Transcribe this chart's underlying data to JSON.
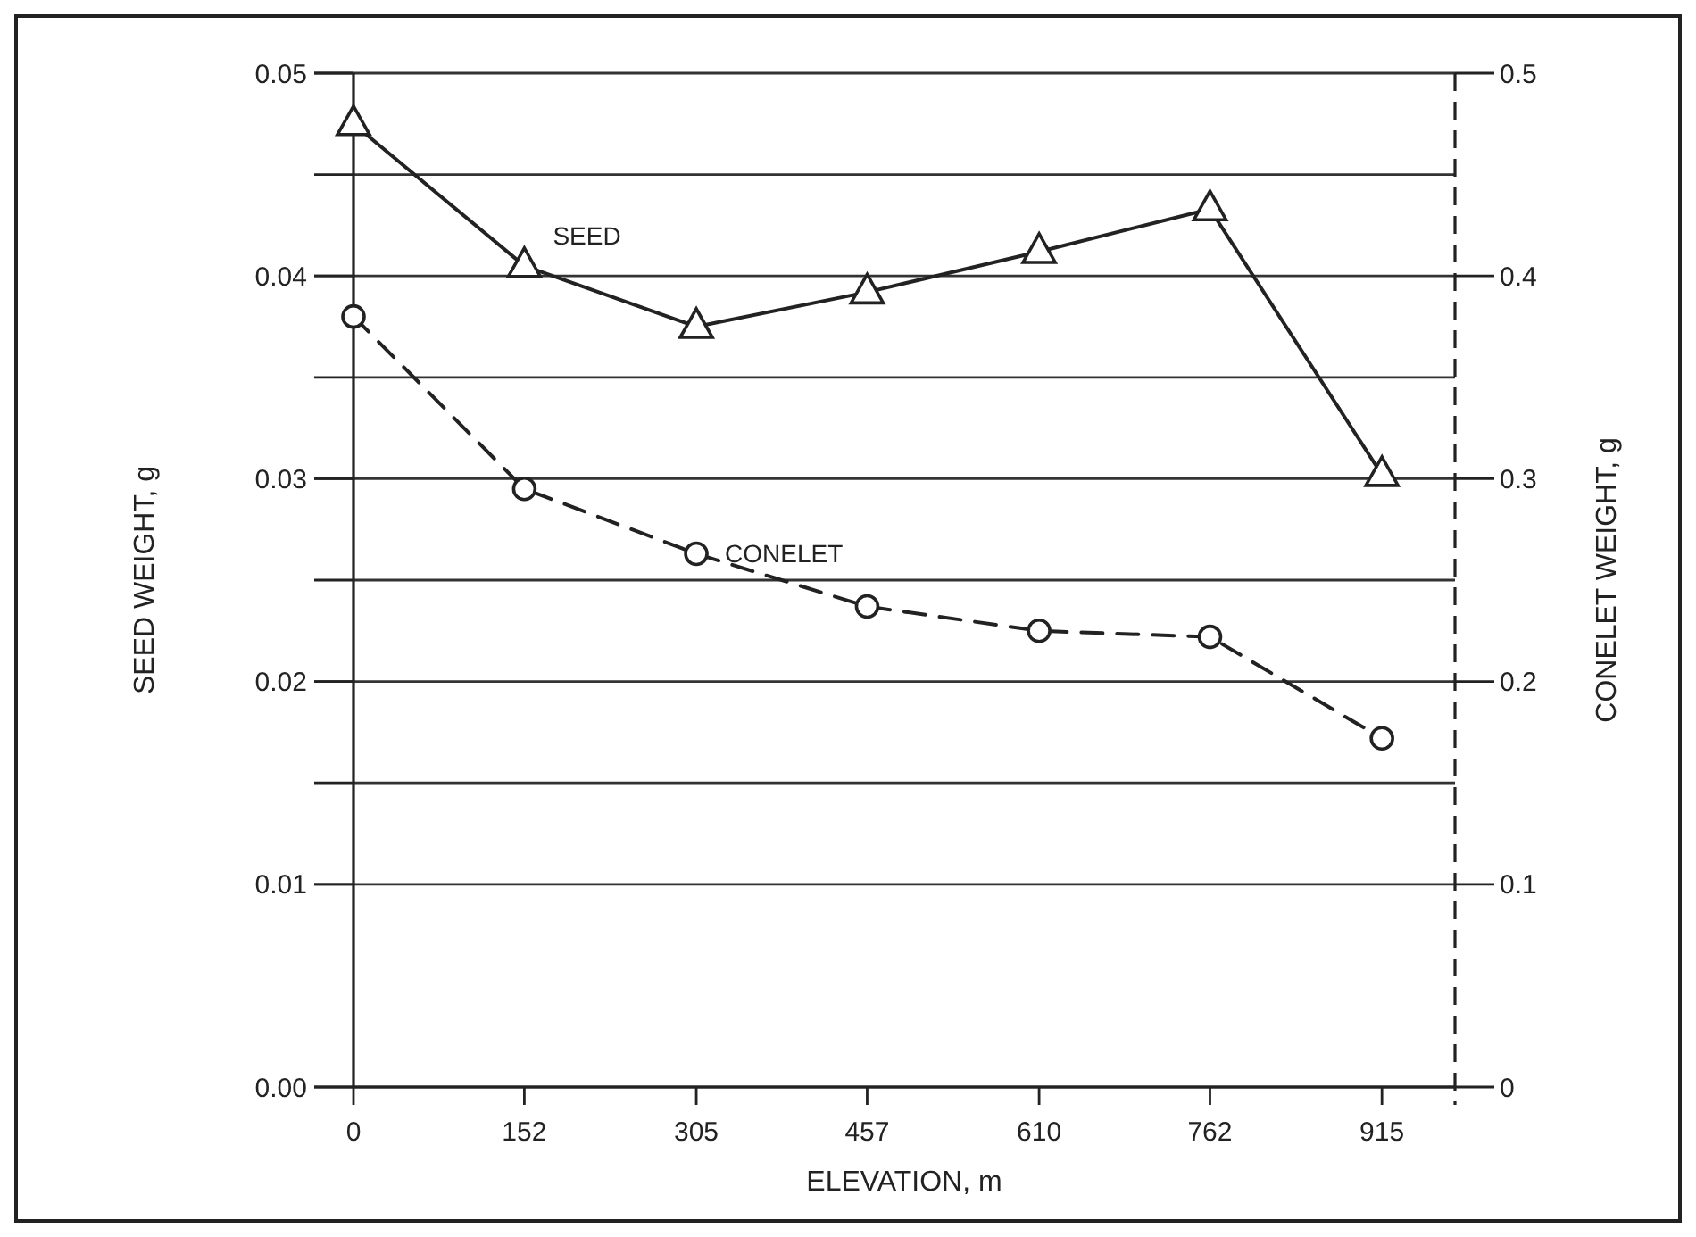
{
  "chart_data": {
    "type": "line",
    "xlabel": "ELEVATION, m",
    "ylabel": "SEED WEIGHT, g",
    "y2label": "CONELET WEIGHT, g",
    "x": [
      0,
      152,
      305,
      457,
      610,
      762,
      915
    ],
    "xlim": [
      0,
      980
    ],
    "xticks": [
      0,
      152,
      305,
      457,
      610,
      762,
      915
    ],
    "ylim": [
      0,
      0.05
    ],
    "yticks": [
      {
        "value": 0,
        "label": "0.00"
      },
      0.01,
      {
        "value": 0.015,
        "label": null
      },
      0.02,
      {
        "value": 0.025,
        "label": null
      },
      0.03,
      {
        "value": 0.035,
        "label": null
      },
      0.04,
      {
        "value": 0.045,
        "label": null
      },
      0.05
    ],
    "y2lim": [
      0,
      0.5
    ],
    "y2ticks": [
      0,
      0.1,
      0.2,
      0.3,
      0.4,
      0.5
    ],
    "grid": "y",
    "legend": false,
    "series": [
      {
        "name": "SEED",
        "color": "#222222",
        "marker": "triangle",
        "line_style": "solid",
        "values": [
          0.0475,
          0.0405,
          0.0375,
          0.0392,
          0.0412,
          0.0433,
          0.0302
        ]
      },
      {
        "name": "CONELET",
        "color": "#222222",
        "marker": "circle",
        "line_style": "dashed",
        "axis": "y2",
        "values": [
          0.38,
          0.295,
          0.263,
          0.237,
          0.225,
          0.222,
          0.172
        ]
      }
    ]
  }
}
